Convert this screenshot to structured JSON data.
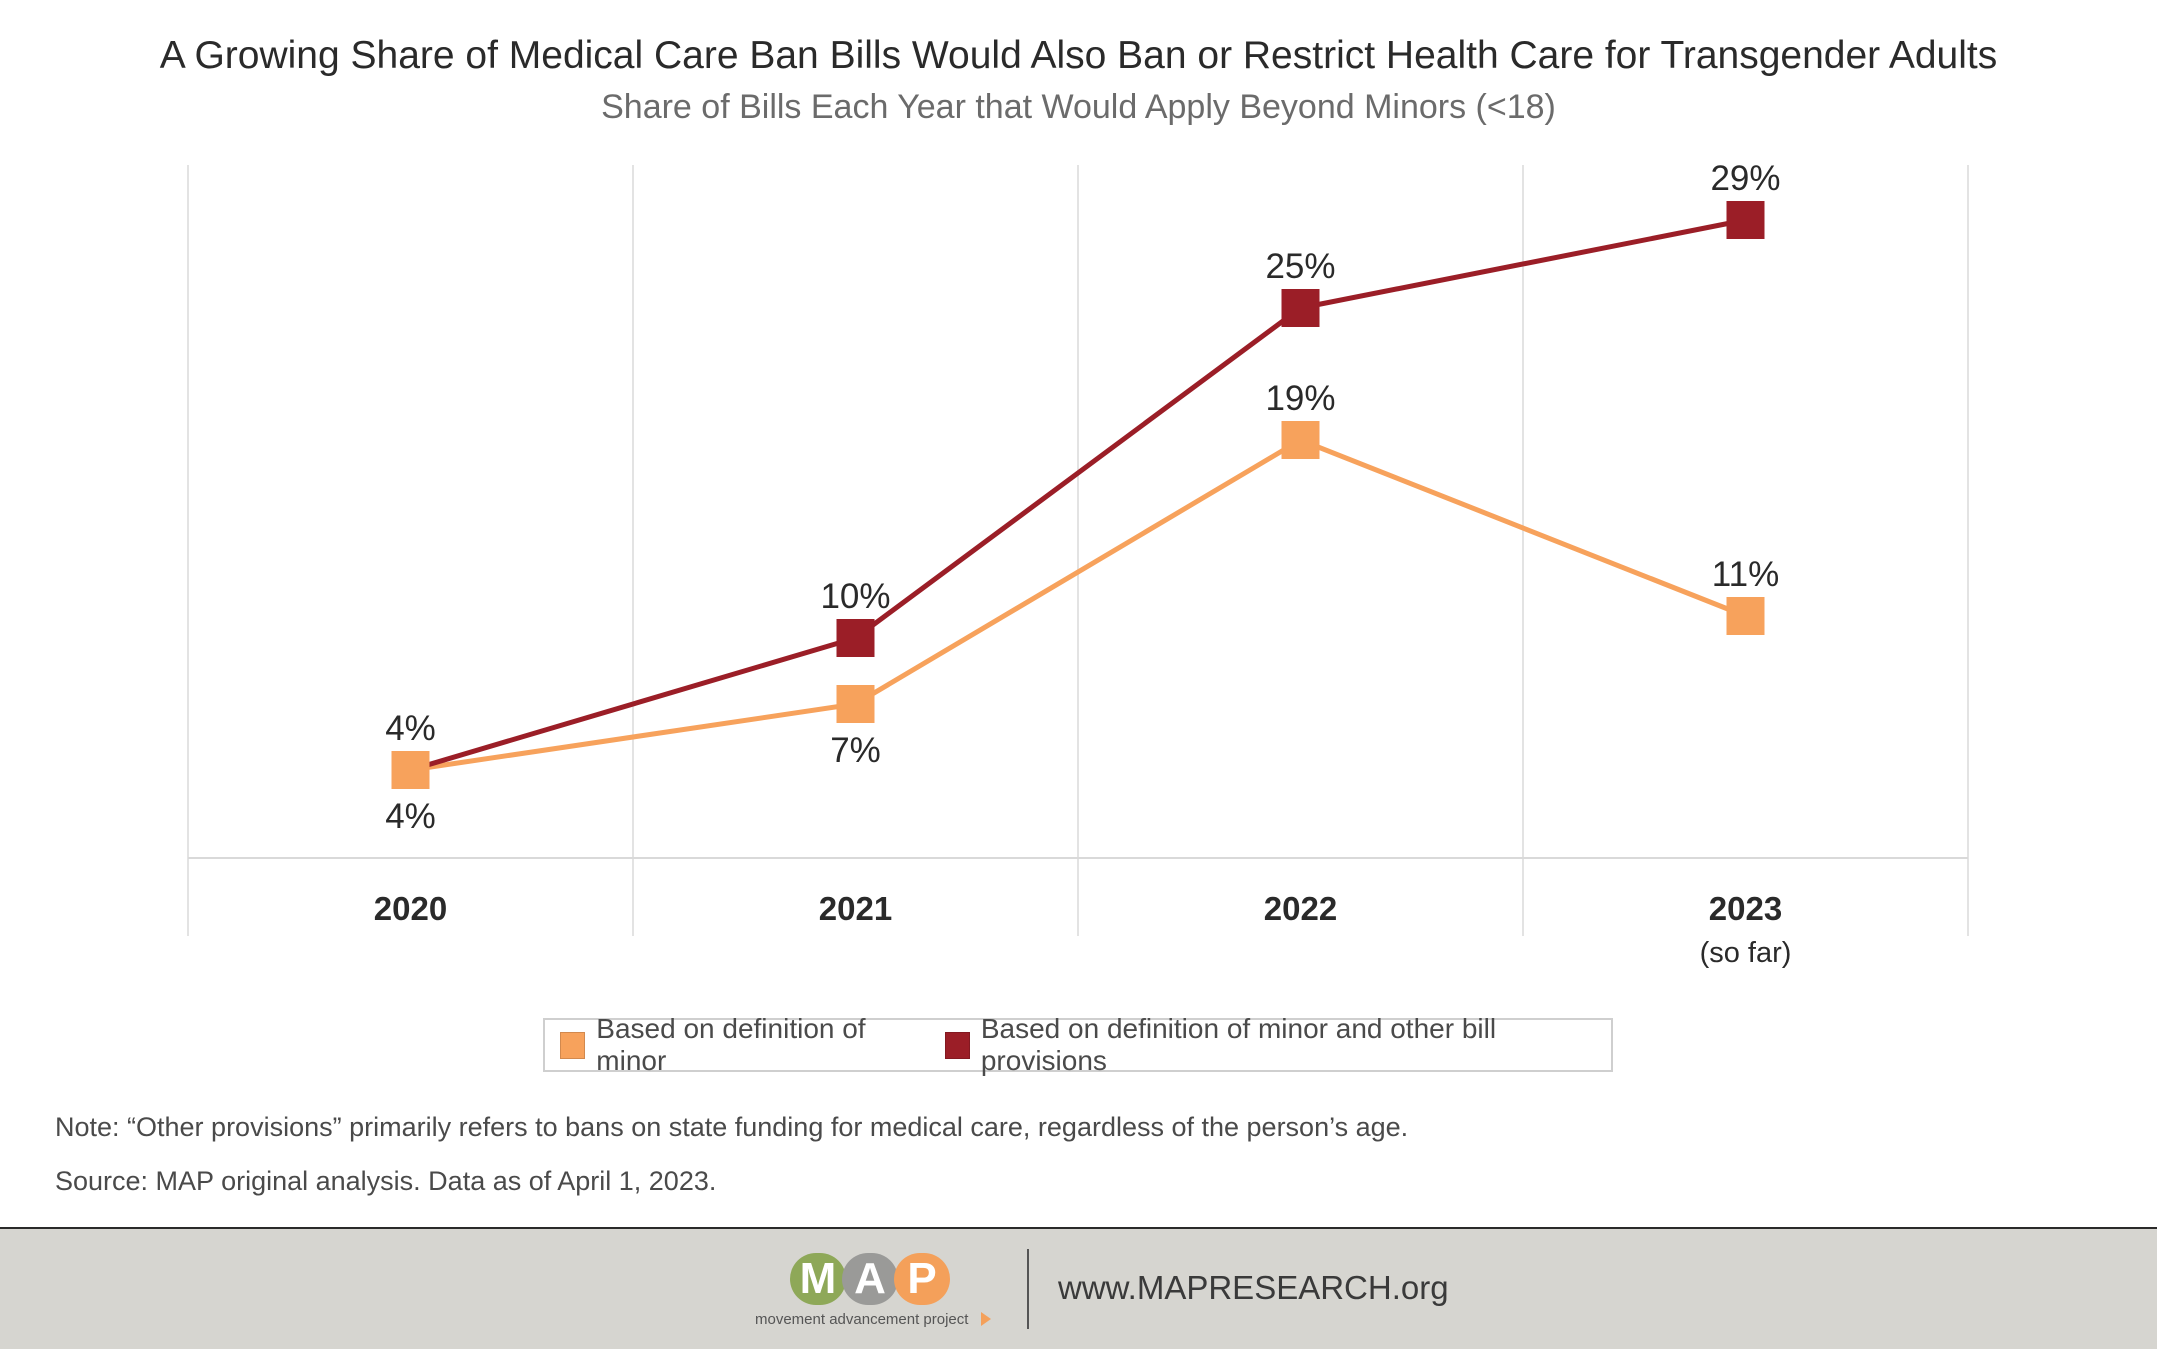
{
  "header": {
    "title": "A Growing Share of Medical Care Ban Bills Would Also Ban or Restrict Health Care for Transgender Adults",
    "subtitle": "Share of Bills Each Year that Would Apply Beyond Minors (<18)"
  },
  "chart_data": {
    "type": "line",
    "title": "A Growing Share of Medical Care Ban Bills Would Also Ban or Restrict Health Care for Transgender Adults",
    "subtitle": "Share of Bills Each Year that Would Apply Beyond Minors (<18)",
    "categories": [
      "2020",
      "2021",
      "2022",
      "2023"
    ],
    "category_sublabels": [
      "",
      "",
      "",
      "(so far)"
    ],
    "ylim": [
      0,
      35
    ],
    "grid": "vertical",
    "legend_position": "bottom",
    "series": [
      {
        "name": "Based on definition of minor",
        "color": "#f7a25c",
        "values": [
          4,
          7,
          19,
          11
        ],
        "labels": [
          "4%",
          "7%",
          "19%",
          "11%"
        ],
        "label_positions": [
          "below",
          "below",
          "above",
          "above"
        ]
      },
      {
        "name": "Based on definition of minor and other bill provisions",
        "color": "#9b1e27",
        "values": [
          4,
          10,
          25,
          29
        ],
        "labels": [
          "4%",
          "10%",
          "25%",
          "29%"
        ],
        "label_positions": [
          "above",
          "above",
          "above",
          "above"
        ]
      }
    ]
  },
  "notes": {
    "note": "Note: “Other provisions” primarily refers to bans on state funding for medical care, regardless of the person’s age.",
    "source": "Source: MAP original analysis. Data as of April 1, 2023."
  },
  "footer": {
    "logo_letters": [
      "M",
      "A",
      "P"
    ],
    "logo_colors": [
      "#8ea858",
      "#9a9a98",
      "#f4a05a"
    ],
    "logo_tagline": "movement advancement project",
    "url": "www.MAPRESEARCH.org"
  }
}
